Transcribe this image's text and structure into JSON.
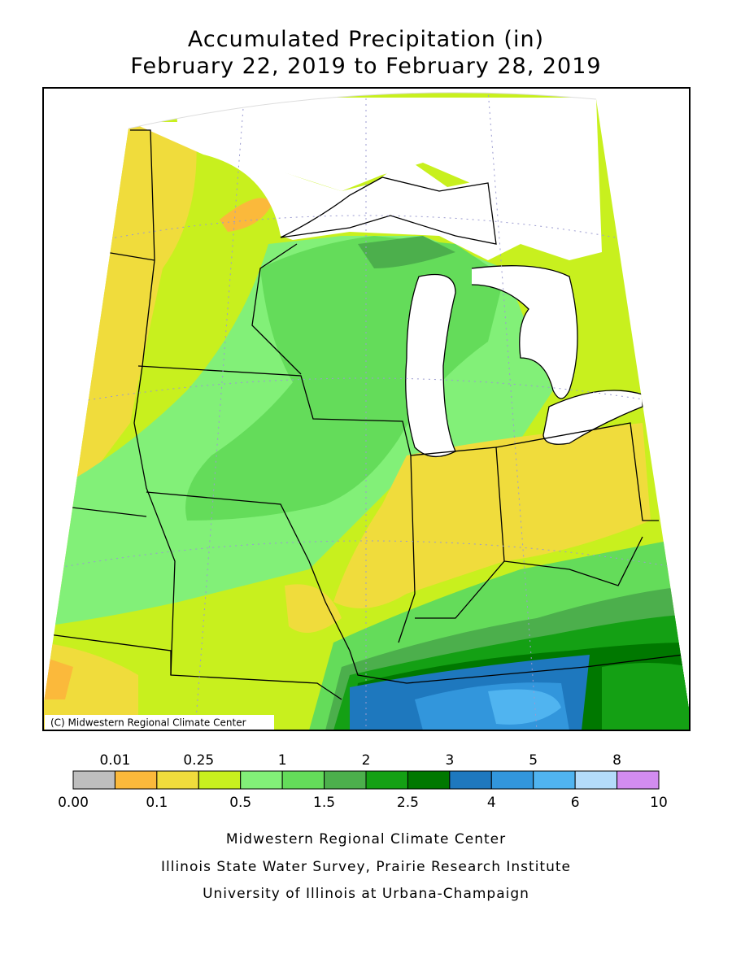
{
  "title": [
    "Accumulated Precipitation (in)",
    "February 22, 2019 to February 28, 2019"
  ],
  "credit": "(C) Midwestern Regional Climate Center",
  "legend": {
    "colors": [
      "#bebebe",
      "#fbb93b",
      "#f0dc3c",
      "#c8f01e",
      "#82f078",
      "#64dc5a",
      "#4caf4c",
      "#14a014",
      "#007800",
      "#1e78be",
      "#3296dc",
      "#50b4f0",
      "#b4dcfa",
      "#d28cf0"
    ],
    "labels": [
      "0.00",
      "0.01",
      "0.1",
      "0.25",
      "0.5",
      "1",
      "1.5",
      "2",
      "2.5",
      "3",
      "4",
      "5",
      "6",
      "8",
      "10"
    ]
  },
  "footer": [
    "Midwestern Regional Climate Center",
    "Illinois State Water Survey, Prairie Research Institute",
    "University of Illinois at Urbana-Champaign"
  ]
}
